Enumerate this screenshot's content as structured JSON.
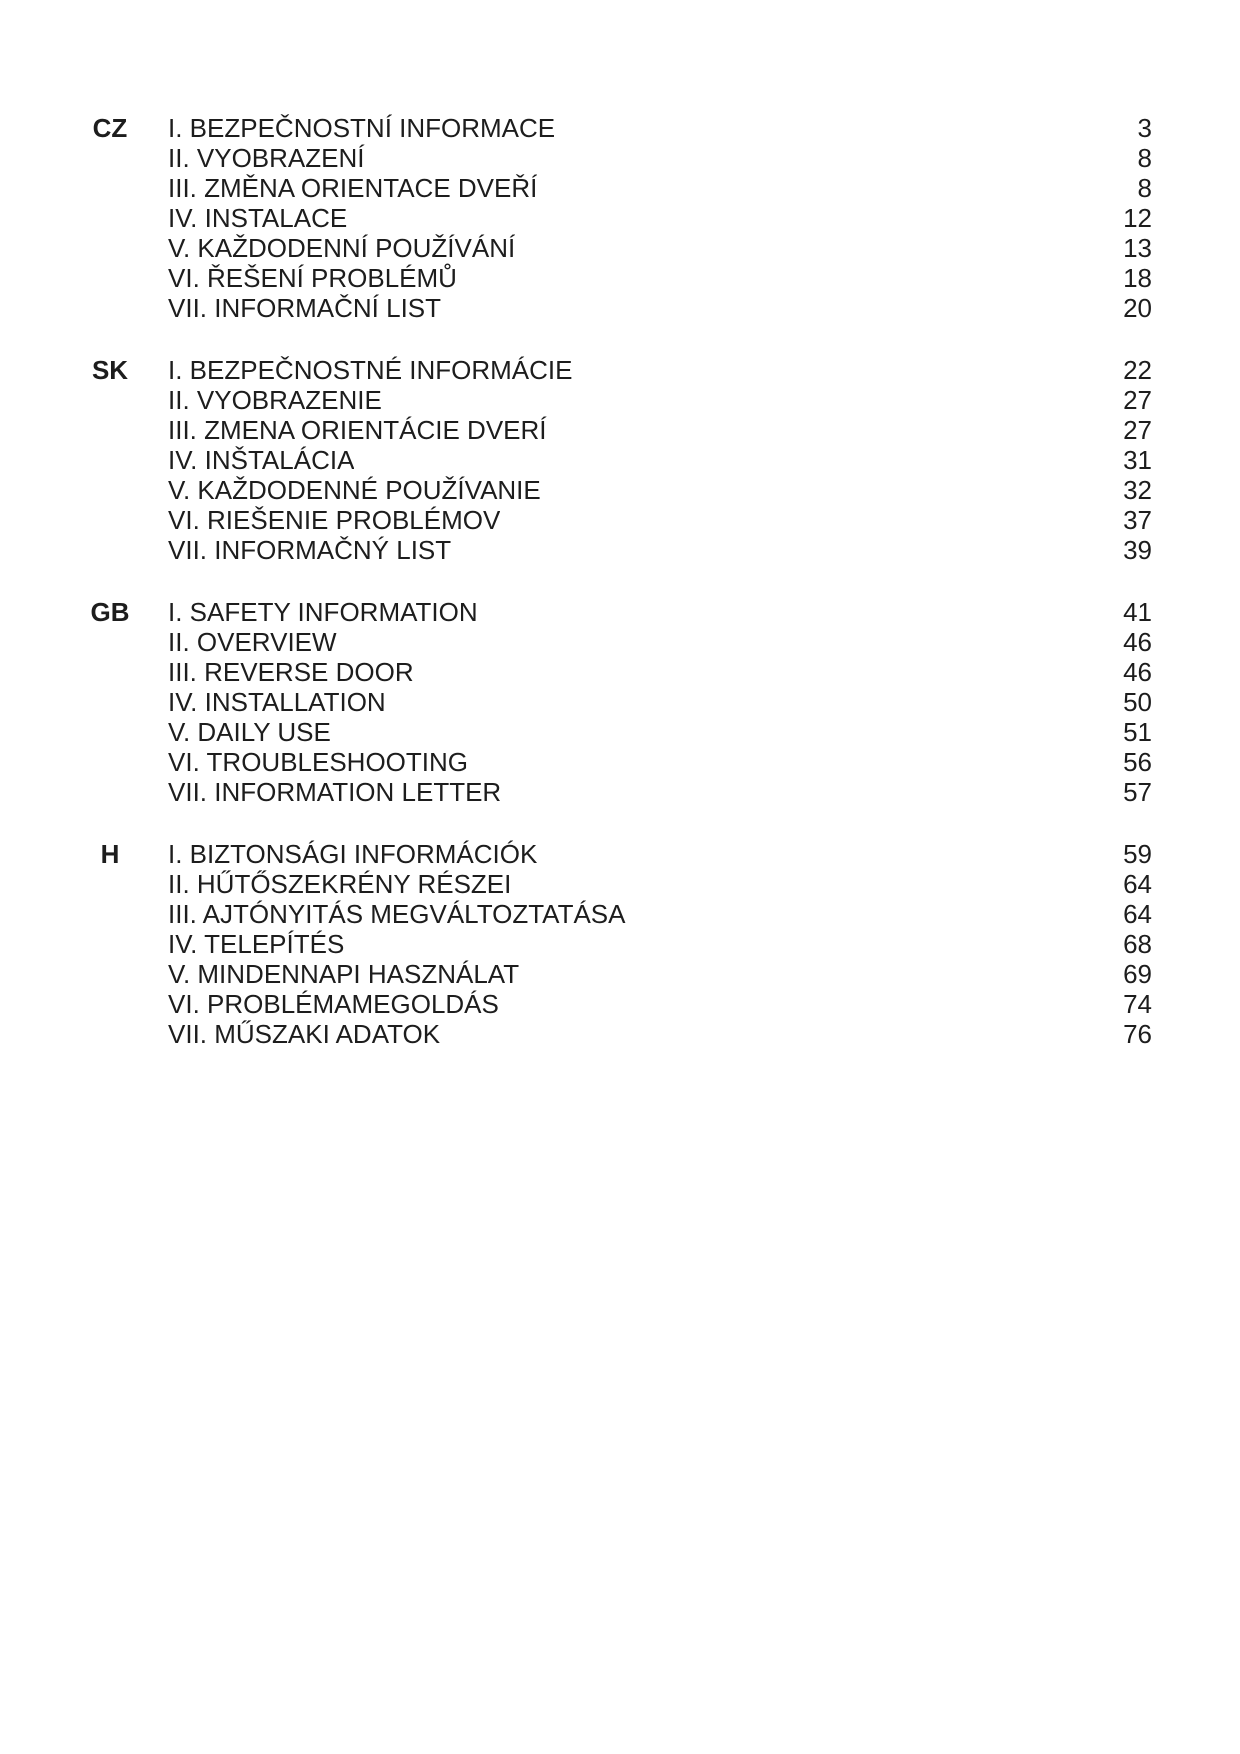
{
  "page": {
    "background": "#ffffff",
    "text_color": "#1d1d1d"
  },
  "toc": {
    "sections": [
      {
        "language_code": "CZ",
        "items": [
          {
            "title": "I. BEZPEČNOSTNÍ INFORMACE",
            "page": "3"
          },
          {
            "title": "II. VYOBRAZENÍ",
            "page": "8"
          },
          {
            "title": "III. ZMĚNA ORIENTACE DVEŘÍ",
            "page": "8"
          },
          {
            "title": "IV. INSTALACE",
            "page": "12"
          },
          {
            "title": "V. KAŽDODENNÍ POUŽÍVÁNÍ",
            "page": "13"
          },
          {
            "title": "VI. ŘEŠENÍ PROBLÉMŮ",
            "page": "18"
          },
          {
            "title": "VII. INFORMAČNÍ LIST",
            "page": "20"
          }
        ]
      },
      {
        "language_code": "SK",
        "items": [
          {
            "title": "I. BEZPEČNOSTNÉ INFORMÁCIE",
            "page": "22"
          },
          {
            "title": "II. VYOBRAZENIE",
            "page": "27"
          },
          {
            "title": "III. ZMENA ORIENTÁCIE DVERÍ",
            "page": "27"
          },
          {
            "title": "IV. INŠTALÁCIA",
            "page": "31"
          },
          {
            "title": "V. KAŽDODENNÉ POUŽÍVANIE",
            "page": "32"
          },
          {
            "title": "VI. RIEŠENIE PROBLÉMOV",
            "page": "37"
          },
          {
            "title": "VII. INFORMAČNÝ LIST",
            "page": "39"
          }
        ]
      },
      {
        "language_code": "GB",
        "items": [
          {
            "title": "I. SAFETY INFORMATION",
            "page": "41"
          },
          {
            "title": "II. OVERVIEW",
            "page": "46"
          },
          {
            "title": "III. REVERSE DOOR",
            "page": "46"
          },
          {
            "title": "IV. INSTALLATION",
            "page": "50"
          },
          {
            "title": "V. DAILY USE",
            "page": "51"
          },
          {
            "title": "VI. TROUBLESHOOTING",
            "page": "56"
          },
          {
            "title": "VII. INFORMATION LETTER",
            "page": "57"
          }
        ]
      },
      {
        "language_code": "H",
        "items": [
          {
            "title": "I. BIZTONSÁGI INFORMÁCIÓK",
            "page": "59"
          },
          {
            "title": "II. HŰTŐSZEKRÉNY RÉSZEI",
            "page": "64"
          },
          {
            "title": "III. AJTÓNYITÁS MEGVÁLTOZTATÁSA",
            "page": "64"
          },
          {
            "title": "IV. TELEPÍTÉS",
            "page": "68"
          },
          {
            "title": "V. MINDENNAPI HASZNÁLAT",
            "page": "69"
          },
          {
            "title": "VI. PROBLÉMAMEGOLDÁS",
            "page": "74"
          },
          {
            "title": "VII. MŰSZAKI ADATOK",
            "page": "76"
          }
        ]
      }
    ]
  }
}
